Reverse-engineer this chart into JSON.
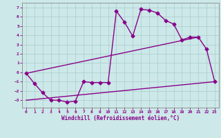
{
  "background_color": "#cce8e8",
  "grid_color": "#aacccc",
  "line_color": "#880088",
  "xlabel": "Windchill (Refroidissement éolien,°C)",
  "xlim": [
    -0.5,
    23.5
  ],
  "ylim": [
    -3.8,
    7.5
  ],
  "xticks": [
    0,
    1,
    2,
    3,
    4,
    5,
    6,
    7,
    8,
    9,
    10,
    11,
    12,
    13,
    14,
    15,
    16,
    17,
    18,
    19,
    20,
    21,
    22,
    23
  ],
  "yticks": [
    -3,
    -2,
    -1,
    0,
    1,
    2,
    3,
    4,
    5,
    6,
    7
  ],
  "series1_x": [
    0,
    1,
    2,
    3,
    4,
    5,
    6,
    7,
    8,
    9,
    10,
    11,
    12,
    13,
    14,
    15,
    16,
    17,
    18,
    19,
    20,
    21,
    22,
    23
  ],
  "series1_y": [
    -0.1,
    -1.2,
    -2.2,
    -3.0,
    -3.0,
    -3.2,
    -3.1,
    -1.0,
    -1.1,
    -1.1,
    -1.1,
    6.6,
    5.4,
    3.9,
    6.8,
    6.7,
    6.4,
    5.6,
    5.2,
    3.5,
    3.8,
    3.8,
    2.5,
    -1.0
  ],
  "series2_x": [
    0,
    21
  ],
  "series2_y": [
    -0.1,
    3.8
  ],
  "series3_x": [
    0,
    23
  ],
  "series3_y": [
    -3.0,
    -1.0
  ],
  "marker": "D",
  "markersize": 2.5,
  "linewidth": 1.0
}
